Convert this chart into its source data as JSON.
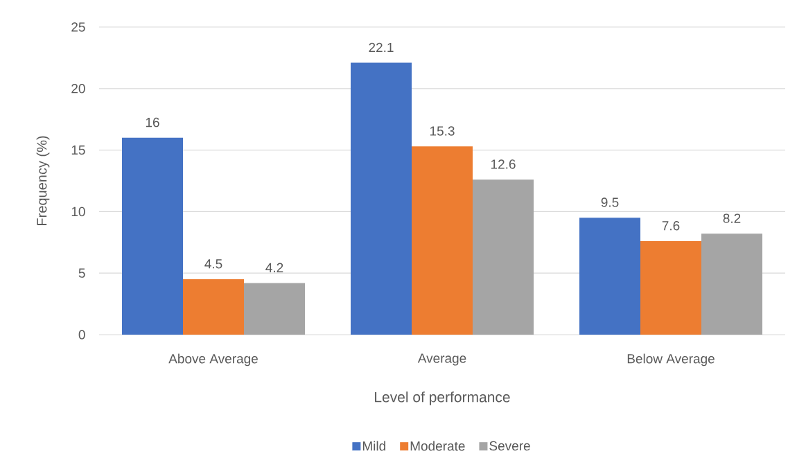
{
  "chart_data": {
    "type": "bar",
    "categories": [
      "Above Average",
      "Average",
      "Below Average"
    ],
    "series": [
      {
        "name": "Mild",
        "color": "#4472c4",
        "values": [
          16,
          22.1,
          9.5
        ]
      },
      {
        "name": "Moderate",
        "color": "#ed7d31",
        "values": [
          4.5,
          15.3,
          7.6
        ]
      },
      {
        "name": "Severe",
        "color": "#a5a5a5",
        "values": [
          4.2,
          12.6,
          8.2
        ]
      }
    ],
    "xlabel": "Level of performance",
    "ylabel": "Frequency (%)",
    "ylim": [
      0,
      25
    ],
    "yticks": [
      0,
      5,
      10,
      15,
      20,
      25
    ],
    "grid": "y",
    "legend": "bottom",
    "data_labels": true
  }
}
